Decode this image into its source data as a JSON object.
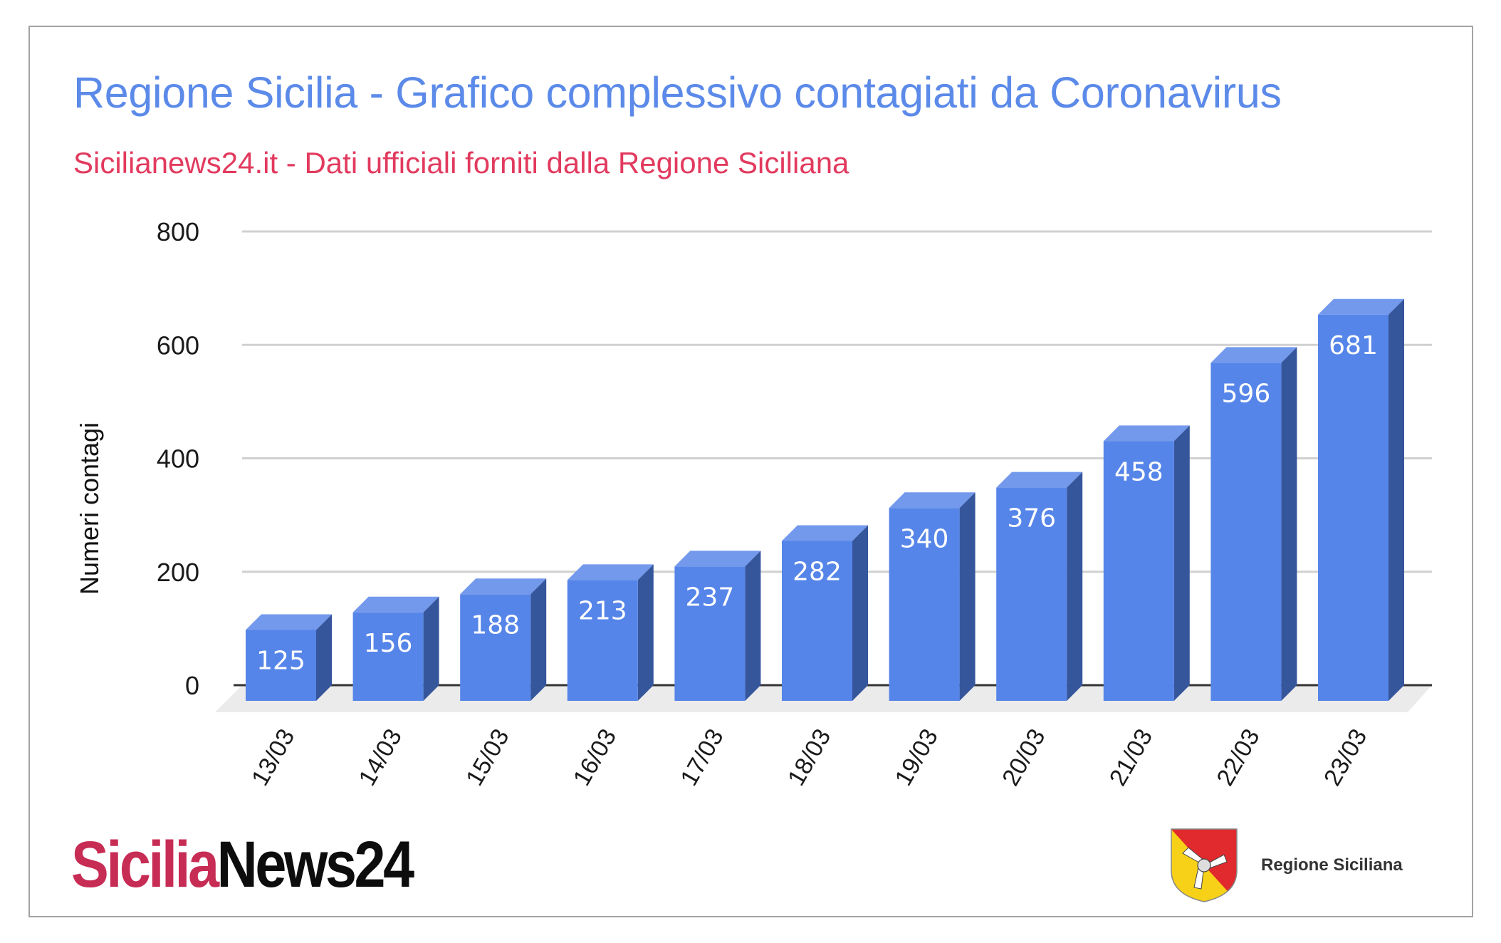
{
  "header": {
    "title": "Regione Sicilia - Grafico complessivo contagiati da Coronavirus",
    "subtitle": "Sicilianews24.it - Dati ufficiali forniti dalla Regione Siciliana"
  },
  "colors": {
    "title": "#5b8ae9",
    "subtitle": "#e23a5e",
    "bar_front": "#5685e9",
    "bar_top": "#7399ec",
    "bar_side": "#36569c",
    "gridline": "#d0d0d0",
    "floor": "#ebebeb"
  },
  "chart_data": {
    "type": "bar",
    "style": "3d-column",
    "title": "Regione Sicilia - Grafico complessivo contagiati da Coronavirus",
    "subtitle": "Sicilianews24.it - Dati ufficiali forniti dalla Regione Siciliana",
    "xlabel": "",
    "ylabel": "Numeri contagi",
    "categories": [
      "13/03",
      "14/03",
      "15/03",
      "16/03",
      "17/03",
      "18/03",
      "19/03",
      "20/03",
      "21/03",
      "22/03",
      "23/03"
    ],
    "values": [
      125,
      156,
      188,
      213,
      237,
      282,
      340,
      376,
      458,
      596,
      681
    ],
    "data_labels": [
      "125",
      "156",
      "188",
      "213",
      "237",
      "282",
      "340",
      "376",
      "458",
      "596",
      "681"
    ],
    "ylim": [
      0,
      800
    ],
    "yticks": [
      0,
      200,
      400,
      600,
      800
    ],
    "ytick_labels": [
      "0",
      "200",
      "400",
      "600",
      "800"
    ],
    "grid": true,
    "legend": "none",
    "x_label_rotation": -60
  },
  "footer": {
    "brand_left_part1": "Sicilia",
    "brand_left_part2": "News24",
    "brand_right_label": "Regione Siciliana"
  }
}
